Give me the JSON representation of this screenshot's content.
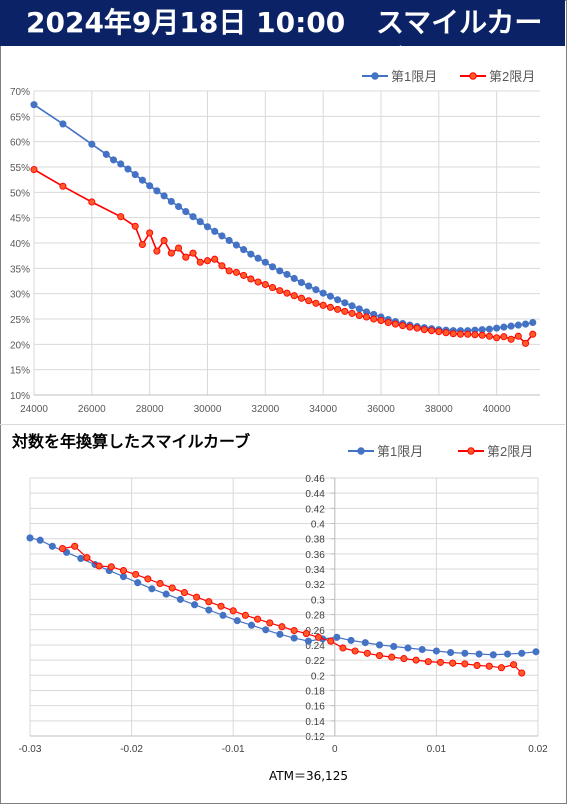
{
  "header": {
    "datetime": "2024年9月18日 10:00",
    "title": "スマイルカーブ",
    "bg_color": "#0b2366"
  },
  "colors": {
    "series1": "#4472c4",
    "series2": "#ff0000",
    "series2_marker_fill": "#ff5a2a",
    "grid": "#d9d9d9"
  },
  "chart_data": [
    {
      "type": "line",
      "title": "",
      "xlabel": "",
      "ylabel": "",
      "xlim": [
        24000,
        41500
      ],
      "ylim": [
        0.1,
        0.7
      ],
      "x_ticks": [
        24000,
        26000,
        28000,
        30000,
        32000,
        34000,
        36000,
        38000,
        40000
      ],
      "y_ticks": [
        0.1,
        0.15,
        0.2,
        0.25,
        0.3,
        0.35,
        0.4,
        0.45,
        0.5,
        0.55,
        0.6,
        0.65,
        0.7
      ],
      "y_tick_labels": [
        "10%",
        "15%",
        "20%",
        "25%",
        "30%",
        "35%",
        "40%",
        "45%",
        "50%",
        "55%",
        "60%",
        "65%",
        "70%"
      ],
      "grid": true,
      "legend": "top-right",
      "series": [
        {
          "name": "第1限月",
          "x": [
            24000,
            25000,
            26000,
            26500,
            26750,
            27000,
            27250,
            27500,
            27750,
            28000,
            28250,
            28500,
            28750,
            29000,
            29250,
            29500,
            29750,
            30000,
            30250,
            30500,
            30750,
            31000,
            31250,
            31500,
            31750,
            32000,
            32250,
            32500,
            32750,
            33000,
            33250,
            33500,
            33750,
            34000,
            34250,
            34500,
            34750,
            35000,
            35250,
            35500,
            35750,
            36000,
            36250,
            36500,
            36750,
            37000,
            37250,
            37500,
            37750,
            38000,
            38250,
            38500,
            38750,
            39000,
            39250,
            39500,
            39750,
            40000,
            40250,
            40500,
            40750,
            41000,
            41250
          ],
          "y": [
            0.673,
            0.635,
            0.595,
            0.575,
            0.564,
            0.556,
            0.546,
            0.535,
            0.524,
            0.513,
            0.503,
            0.493,
            0.482,
            0.472,
            0.462,
            0.452,
            0.442,
            0.432,
            0.423,
            0.414,
            0.405,
            0.396,
            0.387,
            0.378,
            0.37,
            0.362,
            0.353,
            0.345,
            0.338,
            0.33,
            0.322,
            0.315,
            0.308,
            0.301,
            0.295,
            0.288,
            0.282,
            0.276,
            0.27,
            0.264,
            0.259,
            0.254,
            0.249,
            0.245,
            0.241,
            0.238,
            0.235,
            0.233,
            0.231,
            0.229,
            0.228,
            0.227,
            0.227,
            0.227,
            0.228,
            0.229,
            0.23,
            0.232,
            0.234,
            0.236,
            0.238,
            0.24,
            0.243
          ]
        },
        {
          "name": "第2限月",
          "x": [
            24000,
            25000,
            26000,
            27000,
            27500,
            27750,
            28000,
            28250,
            28500,
            28750,
            29000,
            29250,
            29500,
            29750,
            30000,
            30250,
            30500,
            30750,
            31000,
            31250,
            31500,
            31750,
            32000,
            32250,
            32500,
            32750,
            33000,
            33250,
            33500,
            33750,
            34000,
            34250,
            34500,
            34750,
            35000,
            35250,
            35500,
            35750,
            36000,
            36250,
            36500,
            36750,
            37000,
            37250,
            37500,
            37750,
            38000,
            38250,
            38500,
            38750,
            39000,
            39250,
            39500,
            39750,
            40000,
            40250,
            40500,
            40750,
            41000,
            41250
          ],
          "y": [
            0.545,
            0.512,
            0.481,
            0.452,
            0.433,
            0.397,
            0.42,
            0.384,
            0.405,
            0.38,
            0.39,
            0.372,
            0.38,
            0.362,
            0.365,
            0.368,
            0.355,
            0.345,
            0.342,
            0.336,
            0.329,
            0.323,
            0.318,
            0.312,
            0.306,
            0.301,
            0.296,
            0.291,
            0.286,
            0.281,
            0.277,
            0.273,
            0.269,
            0.265,
            0.261,
            0.257,
            0.254,
            0.25,
            0.247,
            0.243,
            0.24,
            0.237,
            0.234,
            0.232,
            0.229,
            0.227,
            0.225,
            0.223,
            0.221,
            0.22,
            0.22,
            0.219,
            0.218,
            0.216,
            0.213,
            0.215,
            0.21,
            0.216,
            0.202,
            0.22
          ]
        }
      ]
    },
    {
      "type": "scatter",
      "title": "対数を年換算したスマイルカーブ",
      "xlabel": "ATM＝36,125",
      "ylabel": "",
      "xlim": [
        -0.03,
        0.02
      ],
      "ylim": [
        0.12,
        0.46
      ],
      "x_ticks": [
        -0.03,
        -0.02,
        -0.01,
        0,
        0.01,
        0.02
      ],
      "y_ticks": [
        0.12,
        0.14,
        0.16,
        0.18,
        0.2,
        0.22,
        0.24,
        0.26,
        0.28,
        0.3,
        0.32,
        0.34,
        0.36,
        0.38,
        0.4,
        0.42,
        0.44,
        0.46
      ],
      "grid": true,
      "legend": "top-right",
      "series": [
        {
          "name": "第1限月",
          "x": [
            -0.03,
            -0.029,
            -0.0278,
            -0.0264,
            -0.025,
            -0.0236,
            -0.0222,
            -0.0208,
            -0.0194,
            -0.018,
            -0.0166,
            -0.0152,
            -0.0138,
            -0.0124,
            -0.011,
            -0.0096,
            -0.0082,
            -0.0068,
            -0.0054,
            -0.004,
            -0.0026,
            -0.0012,
            0.0002,
            0.0016,
            0.003,
            0.0044,
            0.0058,
            0.0072,
            0.0086,
            0.01,
            0.0114,
            0.0128,
            0.0142,
            0.0156,
            0.017,
            0.0184,
            0.0198
          ],
          "y": [
            0.381,
            0.378,
            0.37,
            0.362,
            0.354,
            0.346,
            0.338,
            0.33,
            0.322,
            0.314,
            0.307,
            0.3,
            0.293,
            0.286,
            0.279,
            0.272,
            0.266,
            0.26,
            0.254,
            0.249,
            0.245,
            0.248,
            0.25,
            0.246,
            0.243,
            0.24,
            0.238,
            0.236,
            0.234,
            0.232,
            0.23,
            0.229,
            0.228,
            0.227,
            0.228,
            0.229,
            0.231
          ]
        },
        {
          "name": "第2限月",
          "x": [
            -0.0268,
            -0.0256,
            -0.0244,
            -0.0232,
            -0.022,
            -0.0208,
            -0.0196,
            -0.0184,
            -0.0172,
            -0.016,
            -0.0148,
            -0.0136,
            -0.0124,
            -0.0112,
            -0.01,
            -0.0088,
            -0.0076,
            -0.0064,
            -0.0052,
            -0.004,
            -0.0028,
            -0.0016,
            -0.0004,
            0.0008,
            0.002,
            0.0032,
            0.0044,
            0.0056,
            0.0068,
            0.008,
            0.0092,
            0.0104,
            0.0116,
            0.0128,
            0.014,
            0.0152,
            0.0164,
            0.0176,
            0.0184
          ],
          "y": [
            0.367,
            0.37,
            0.355,
            0.344,
            0.343,
            0.338,
            0.333,
            0.327,
            0.321,
            0.315,
            0.309,
            0.303,
            0.297,
            0.291,
            0.285,
            0.279,
            0.274,
            0.269,
            0.264,
            0.259,
            0.255,
            0.25,
            0.245,
            0.236,
            0.232,
            0.229,
            0.226,
            0.224,
            0.222,
            0.22,
            0.218,
            0.217,
            0.216,
            0.215,
            0.213,
            0.212,
            0.21,
            0.214,
            0.203
          ]
        }
      ]
    }
  ]
}
